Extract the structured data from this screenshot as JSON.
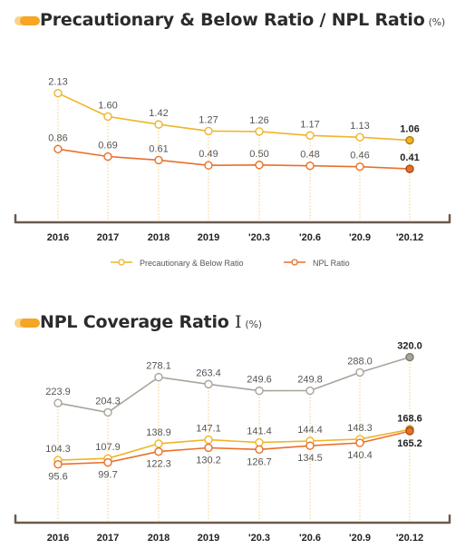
{
  "colors": {
    "title_icon": "#f5a623",
    "title_icon_light": "#fbd38a",
    "yellow": "#f0b429",
    "orange": "#e8702a",
    "gray": "#a9a49b",
    "axis": "#6b5a4e",
    "text": "#333333"
  },
  "chart1": {
    "title": "Precautionary & Below Ratio / NPL Ratio",
    "unit": "(%)",
    "legend": [
      "Precautionary & Below Ratio",
      "NPL Ratio"
    ]
  },
  "chart2": {
    "title": "NPL Coverage Ratio",
    "title_suffix": "I",
    "unit": "(%)"
  },
  "chart_data": [
    {
      "type": "line",
      "title": "Precautionary & Below Ratio / NPL Ratio",
      "unit": "%",
      "categories": [
        "2016",
        "2017",
        "2018",
        "2019",
        "'20.3",
        "'20.6",
        "'20.9",
        "'20.12"
      ],
      "series": [
        {
          "name": "Precautionary & Below Ratio",
          "color": "#f0b429",
          "values": [
            2.13,
            1.6,
            1.42,
            1.27,
            1.26,
            1.17,
            1.13,
            1.06
          ],
          "labels": [
            "2.13",
            "1.60",
            "1.42",
            "1.27",
            "1.26",
            "1.17",
            "1.13",
            "1.06"
          ]
        },
        {
          "name": "NPL Ratio",
          "color": "#e8702a",
          "values": [
            0.86,
            0.69,
            0.61,
            0.49,
            0.5,
            0.48,
            0.46,
            0.41
          ],
          "labels": [
            "0.86",
            "0.69",
            "0.61",
            "0.49",
            "0.50",
            "0.48",
            "0.46",
            "0.41"
          ]
        }
      ],
      "legend": "bottom-center",
      "grid": false
    },
    {
      "type": "line",
      "title": "NPL Coverage Ratio",
      "unit": "%",
      "categories": [
        "2016",
        "2017",
        "2018",
        "2019",
        "'20.3",
        "'20.6",
        "'20.9",
        "'20.12"
      ],
      "series": [
        {
          "color": "#a9a49b",
          "values": [
            223.9,
            204.3,
            278.1,
            263.4,
            249.6,
            249.8,
            288.0,
            320.0
          ],
          "labels": [
            "223.9",
            "204.3",
            "278.1",
            "263.4",
            "249.6",
            "249.8",
            "288.0",
            "320.0"
          ]
        },
        {
          "color": "#f0b429",
          "values": [
            104.3,
            107.9,
            138.9,
            147.1,
            141.4,
            144.4,
            148.3,
            168.6
          ],
          "labels": [
            "104.3",
            "107.9",
            "138.9",
            "147.1",
            "141.4",
            "144.4",
            "148.3",
            "168.6"
          ]
        },
        {
          "color": "#e8702a",
          "values": [
            95.6,
            99.7,
            122.3,
            130.2,
            126.7,
            134.5,
            140.4,
            165.2
          ],
          "labels": [
            "95.6",
            "99.7",
            "122.3",
            "130.2",
            "126.7",
            "134.5",
            "140.4",
            "165.2"
          ]
        }
      ],
      "grid": false
    }
  ]
}
